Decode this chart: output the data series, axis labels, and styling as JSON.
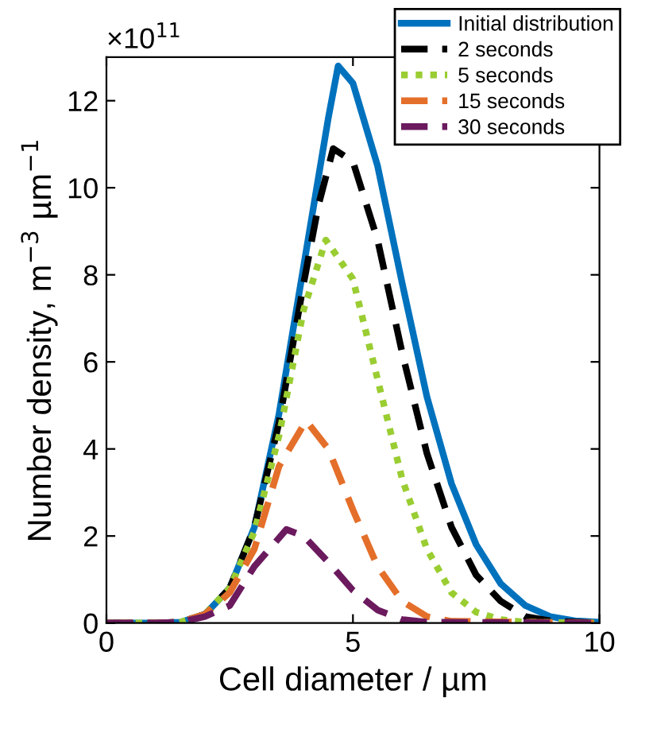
{
  "chart_data": {
    "type": "line",
    "xlabel": "Cell diameter / µm",
    "ylabel": "Number density, m$^{−3}$ µm$^{−1}$",
    "annotations": [
      "×10$^{11}$"
    ],
    "xlim": [
      0,
      10
    ],
    "xticks": [
      0,
      5,
      10
    ],
    "ylim": [
      0,
      13
    ],
    "yticks": [
      0,
      2,
      4,
      6,
      8,
      10,
      12
    ],
    "grid": false,
    "legend": "top right",
    "marker": "none",
    "series": [
      {
        "name": "Initial distribution",
        "color": "#0072bd",
        "line_style": "solid",
        "x": [
          0,
          1,
          1.5,
          2,
          2.5,
          3,
          3.5,
          4,
          4.5,
          4.7,
          5,
          5.5,
          6,
          6.5,
          7,
          7.5,
          8,
          8.5,
          9,
          9.5,
          10
        ],
        "values": [
          0,
          0,
          0.02,
          0.2,
          0.8,
          2.2,
          4.8,
          8.2,
          11.6,
          12.8,
          12.4,
          10.5,
          7.8,
          5.2,
          3.2,
          1.8,
          0.9,
          0.4,
          0.15,
          0.05,
          0.02
        ]
      },
      {
        "name": "2 seconds",
        "color": "#000000",
        "line_style": "dashed",
        "x": [
          0,
          1,
          1.5,
          2,
          2.5,
          3,
          3.5,
          4,
          4.3,
          4.6,
          5,
          5.5,
          6,
          6.5,
          7,
          7.5,
          8,
          8.5,
          9,
          10
        ],
        "values": [
          0,
          0,
          0.02,
          0.2,
          0.8,
          2.2,
          4.6,
          7.8,
          9.6,
          10.9,
          10.6,
          8.8,
          6.2,
          3.9,
          2.2,
          1.1,
          0.5,
          0.15,
          0.05,
          0
        ]
      },
      {
        "name": "5 seconds",
        "color": "#9acd32",
        "line_style": "dotted",
        "x": [
          0,
          1,
          1.5,
          2,
          2.5,
          3,
          3.5,
          4,
          4.45,
          5,
          5.5,
          6,
          6.5,
          7,
          7.5,
          8,
          8.5,
          10
        ],
        "values": [
          0,
          0,
          0.02,
          0.2,
          0.8,
          2.1,
          4.3,
          7.2,
          8.8,
          7.9,
          5.6,
          3.3,
          1.7,
          0.7,
          0.25,
          0.08,
          0.02,
          0
        ]
      },
      {
        "name": "15 seconds",
        "color": "#e46f2a",
        "line_style": "dashed",
        "x": [
          0,
          1,
          1.5,
          2,
          2.5,
          3,
          3.5,
          4.05,
          4.5,
          5,
          5.5,
          6,
          6.5,
          7,
          10
        ],
        "values": [
          0,
          0,
          0.02,
          0.2,
          0.7,
          1.7,
          3.6,
          4.65,
          4.0,
          2.6,
          1.3,
          0.5,
          0.15,
          0.04,
          0
        ]
      },
      {
        "name": "30 seconds",
        "color": "#6b1a5e",
        "line_style": "dashed",
        "x": [
          0,
          1,
          1.5,
          2,
          2.5,
          3,
          3.65,
          4,
          4.5,
          5,
          5.5,
          6,
          6.5,
          10
        ],
        "values": [
          0,
          0,
          0.02,
          0.15,
          0.4,
          1.3,
          2.15,
          2.0,
          1.4,
          0.75,
          0.3,
          0.08,
          0.02,
          0
        ]
      }
    ]
  }
}
